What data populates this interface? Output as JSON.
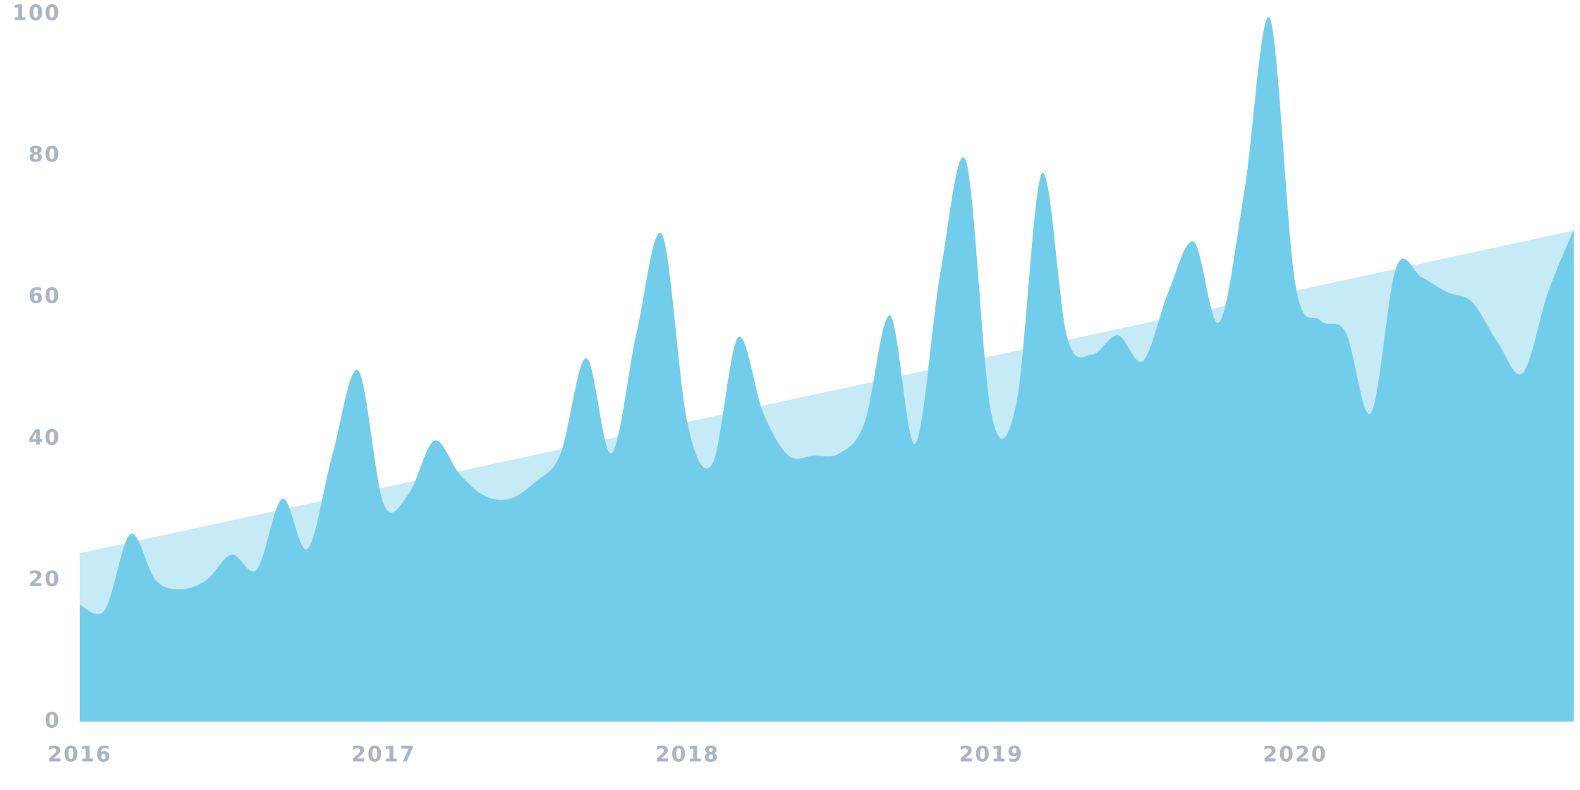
{
  "chart_data": {
    "type": "area",
    "x": [
      2016,
      2016.083,
      2016.167,
      2016.25,
      2016.333,
      2016.417,
      2016.5,
      2016.583,
      2016.667,
      2016.75,
      2016.833,
      2016.917,
      2017,
      2017.083,
      2017.167,
      2017.25,
      2017.333,
      2017.417,
      2017.5,
      2017.583,
      2017.667,
      2017.75,
      2017.833,
      2017.917,
      2018,
      2018.083,
      2018.167,
      2018.25,
      2018.333,
      2018.417,
      2018.5,
      2018.583,
      2018.667,
      2018.75,
      2018.833,
      2018.917,
      2019,
      2019.083,
      2019.167,
      2019.25,
      2019.333,
      2019.417,
      2019.5,
      2019.583,
      2019.667,
      2019.75,
      2019.833,
      2019.917,
      2020,
      2020.083,
      2020.167,
      2020.25,
      2020.333,
      2020.417,
      2020.5,
      2020.583,
      2020.667,
      2020.75,
      2020.833,
      2020.917
    ],
    "series": [
      {
        "color": "#72cdea",
        "values": [
          16.5,
          15.8,
          26.5,
          20,
          18.7,
          20,
          23.6,
          21.5,
          31.5,
          24.4,
          37.9,
          49.6,
          30.8,
          32.2,
          39.7,
          35,
          31.9,
          31.5,
          33.9,
          37.9,
          51.4,
          37.9,
          55,
          68.8,
          42.2,
          36.5,
          54.3,
          43.6,
          37.6,
          37.6,
          37.9,
          42.2,
          57.4,
          39.3,
          63.5,
          79.2,
          43.6,
          45,
          77.5,
          54.3,
          51.9,
          54.6,
          51,
          60.7,
          67.8,
          56.4,
          74.9,
          99.4,
          62.1,
          56.7,
          55,
          43.6,
          64.2,
          62.8,
          60.7,
          59.3,
          53.6,
          49.3,
          60.7,
          69.5
        ]
      }
    ],
    "trend": {
      "color": "#c6eaf6",
      "x": [
        2016,
        2020.917
      ],
      "values": [
        23.8,
        69.4
      ]
    },
    "xlim": [
      2016,
      2020.917
    ],
    "xticks": [
      2016,
      2017,
      2018,
      2019,
      2020
    ],
    "ylim": [
      0,
      100
    ],
    "yticks": [
      0,
      20,
      40,
      60,
      80,
      100
    ],
    "grid": false
  }
}
